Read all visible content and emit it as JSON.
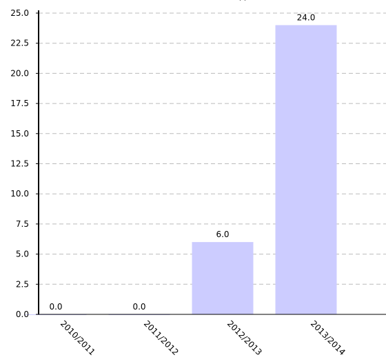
{
  "chart_data": {
    "type": "bar",
    "title": "",
    "title_visible_fragment": "(           )",
    "xlabel": "",
    "ylabel": "",
    "categories": [
      "2010/2011",
      "2011/2012",
      "2012/2013",
      "2013/2014"
    ],
    "values": [
      0.0,
      0.0,
      6.0,
      24.0
    ],
    "data_labels": [
      "0.0",
      "0.0",
      "6.0",
      "24.0"
    ],
    "ylim": [
      0,
      25
    ],
    "yticks": [
      "0.0",
      "2.5",
      "5.0",
      "7.5",
      "10.0",
      "12.5",
      "15.0",
      "17.5",
      "20.0",
      "22.5",
      "25.0"
    ],
    "grid": true,
    "legend": "none",
    "bar_color": "#ccccff",
    "grid_color": "#bbbbbb",
    "axis_color": "#000000"
  }
}
